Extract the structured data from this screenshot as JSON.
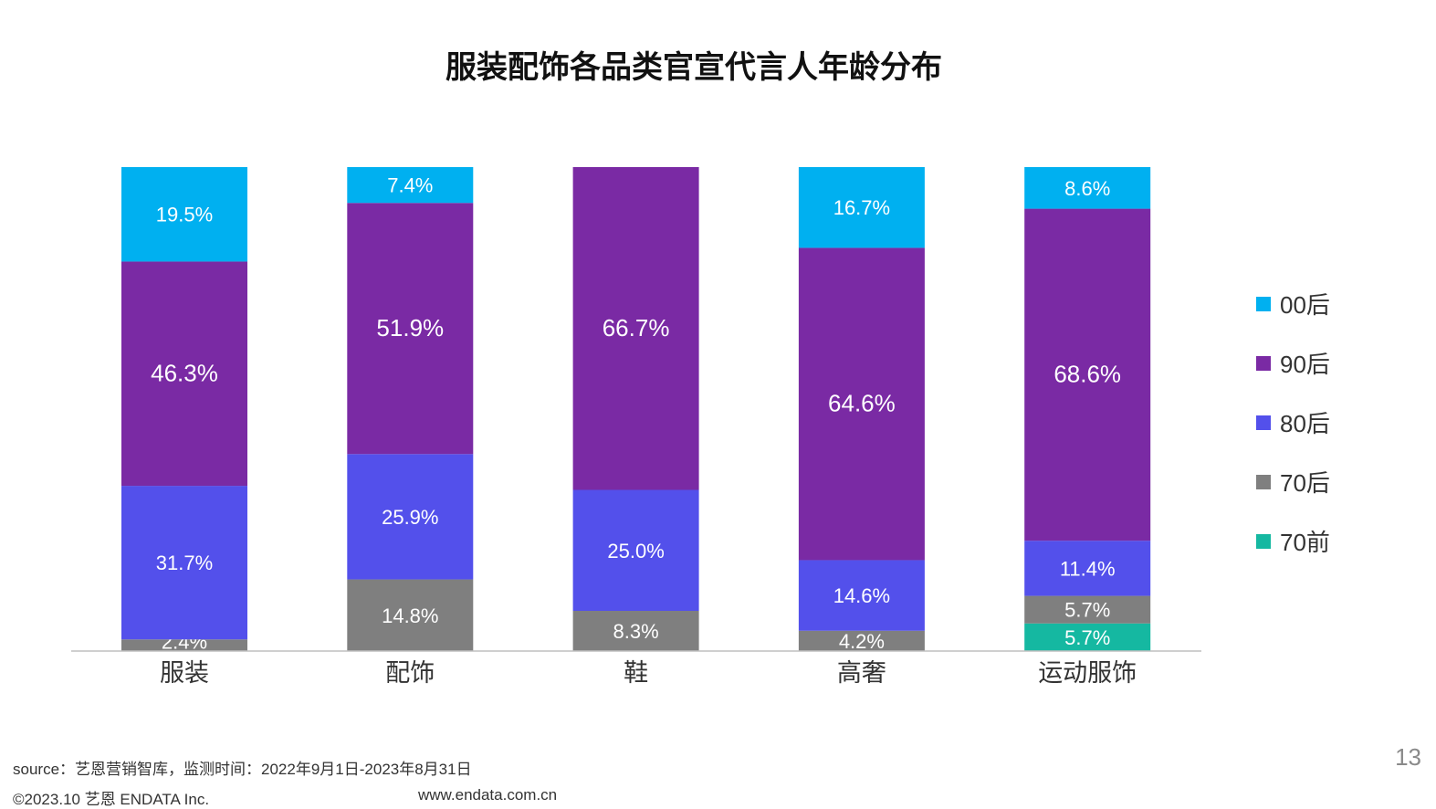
{
  "chart_data": {
    "type": "bar",
    "stacked": true,
    "title": "服装配饰各品类官宣代言人年龄分布",
    "categories": [
      "服装",
      "配饰",
      "鞋",
      "高奢",
      "运动服饰"
    ],
    "ylim": [
      0,
      100
    ],
    "legend_position": "right",
    "series": [
      {
        "name": "70前",
        "color": "#15B8A1",
        "values": [
          0,
          0,
          0,
          0,
          5.7
        ],
        "labels": [
          "",
          "",
          "",
          "",
          "5.7%"
        ]
      },
      {
        "name": "70后",
        "color": "#7F7F7F",
        "values": [
          2.4,
          14.8,
          8.3,
          4.2,
          5.7
        ],
        "labels": [
          "2.4%",
          "14.8%",
          "8.3%",
          "4.2%",
          "5.7%"
        ]
      },
      {
        "name": "80后",
        "color": "#5350EB",
        "values": [
          31.7,
          25.9,
          25.0,
          14.6,
          11.4
        ],
        "labels": [
          "31.7%",
          "25.9%",
          "25.0%",
          "14.6%",
          "11.4%"
        ]
      },
      {
        "name": "90后",
        "color": "#7A2AA4",
        "values": [
          46.3,
          51.9,
          66.7,
          64.6,
          68.6
        ],
        "labels": [
          "46.3%",
          "51.9%",
          "66.7%",
          "64.6%",
          "68.6%"
        ]
      },
      {
        "name": "00后",
        "color": "#00B0F0",
        "values": [
          19.5,
          7.4,
          0,
          16.7,
          8.6
        ],
        "labels": [
          "19.5%",
          "7.4%",
          "",
          "16.7%",
          "8.6%"
        ]
      }
    ]
  },
  "legend_order": [
    "00后",
    "90后",
    "80后",
    "70后",
    "70前"
  ],
  "footer": {
    "source": "source：艺恩营销智库，监测时间：2022年9月1日-2023年8月31日",
    "copyright": "©2023.10  艺恩 ENDATA Inc.",
    "website": "www.endata.com.cn",
    "page_number": "13"
  }
}
